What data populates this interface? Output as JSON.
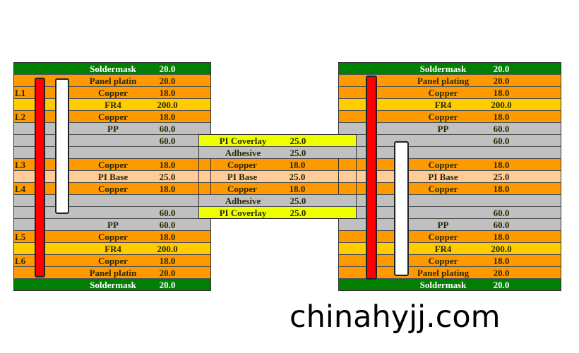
{
  "colors": {
    "soldermask": "#008000",
    "plating": "#FF9900",
    "copper": "#FF9900",
    "fr4": "#FFCC00",
    "pp": "#C0C0C0",
    "pi": "#FFCC99",
    "coverlay": "#EEFF00",
    "adhesive": "#C0C0C0",
    "via_red": "#FF0000",
    "via_white": "#FFFFFF"
  },
  "left": [
    {
      "t": "soldermask",
      "m": "Soldermask",
      "v": "20.0",
      "l": ""
    },
    {
      "t": "plating",
      "m": "Panel platin",
      "v": "20.0",
      "l": ""
    },
    {
      "t": "copper",
      "m": "Copper",
      "v": "18.0",
      "l": "L1"
    },
    {
      "t": "fr4",
      "m": "FR4",
      "v": "200.0",
      "l": ""
    },
    {
      "t": "copper",
      "m": "Copper",
      "v": "18.0",
      "l": "L2"
    },
    {
      "t": "pp",
      "m": "PP",
      "v": "60.0",
      "l": ""
    },
    {
      "t": "pp",
      "m": "",
      "v": "60.0",
      "l": ""
    },
    {
      "t": "pp",
      "m": "",
      "v": "",
      "l": ""
    },
    {
      "t": "copper",
      "m": "Copper",
      "v": "18.0",
      "l": "L3"
    },
    {
      "t": "pi",
      "m": "PI Base",
      "v": "25.0",
      "l": ""
    },
    {
      "t": "copper",
      "m": "Copper",
      "v": "18.0",
      "l": "L4"
    },
    {
      "t": "pp",
      "m": "",
      "v": "",
      "l": ""
    },
    {
      "t": "pp",
      "m": "",
      "v": "60.0",
      "l": ""
    },
    {
      "t": "pp",
      "m": "PP",
      "v": "60.0",
      "l": ""
    },
    {
      "t": "copper",
      "m": "Copper",
      "v": "18.0",
      "l": "L5"
    },
    {
      "t": "fr4",
      "m": "FR4",
      "v": "200.0",
      "l": ""
    },
    {
      "t": "copper",
      "m": "Copper",
      "v": "18.0",
      "l": "L6"
    },
    {
      "t": "plating",
      "m": "Panel platin",
      "v": "20.0",
      "l": ""
    },
    {
      "t": "soldermask",
      "m": "Soldermask",
      "v": "20.0",
      "l": ""
    }
  ],
  "right": [
    {
      "t": "soldermask",
      "m": "Soldermask",
      "v": "20.0"
    },
    {
      "t": "plating",
      "m": "Panel plating",
      "v": "20.0"
    },
    {
      "t": "copper",
      "m": "Copper",
      "v": "18.0"
    },
    {
      "t": "fr4",
      "m": "FR4",
      "v": "200.0"
    },
    {
      "t": "copper",
      "m": "Copper",
      "v": "18.0"
    },
    {
      "t": "pp",
      "m": "PP",
      "v": "60.0"
    },
    {
      "t": "pp",
      "m": "",
      "v": "60.0"
    },
    {
      "t": "pp",
      "m": "",
      "v": ""
    },
    {
      "t": "copper",
      "m": "Copper",
      "v": "18.0"
    },
    {
      "t": "pi",
      "m": "PI Base",
      "v": "25.0"
    },
    {
      "t": "copper",
      "m": "Copper",
      "v": "18.0"
    },
    {
      "t": "pp",
      "m": "",
      "v": ""
    },
    {
      "t": "pp",
      "m": "",
      "v": "60.0"
    },
    {
      "t": "pp",
      "m": "PP",
      "v": "60.0"
    },
    {
      "t": "copper",
      "m": "Copper",
      "v": "18.0"
    },
    {
      "t": "fr4",
      "m": "FR4",
      "v": "200.0"
    },
    {
      "t": "copper",
      "m": "Copper",
      "v": "18.0"
    },
    {
      "t": "plating",
      "m": "Panel plating",
      "v": "20.0"
    },
    {
      "t": "soldermask",
      "m": "Soldermask",
      "v": "20.0"
    }
  ],
  "flex": [
    {
      "t": "coverlay",
      "m": "PI Coverlay",
      "v": "25.0"
    },
    {
      "t": "adhesive",
      "m": "Adhesive",
      "v": "25.0"
    },
    {
      "t": "copper",
      "m": "Copper",
      "v": "18.0"
    },
    {
      "t": "pi",
      "m": "PI Base",
      "v": "25.0"
    },
    {
      "t": "copper",
      "m": "Copper",
      "v": "18.0"
    },
    {
      "t": "adhesive",
      "m": "Adhesive",
      "v": "25.0"
    },
    {
      "t": "coverlay",
      "m": "PI Coverlay",
      "v": "25.0"
    }
  ],
  "watermark": "chinahyjj.com"
}
